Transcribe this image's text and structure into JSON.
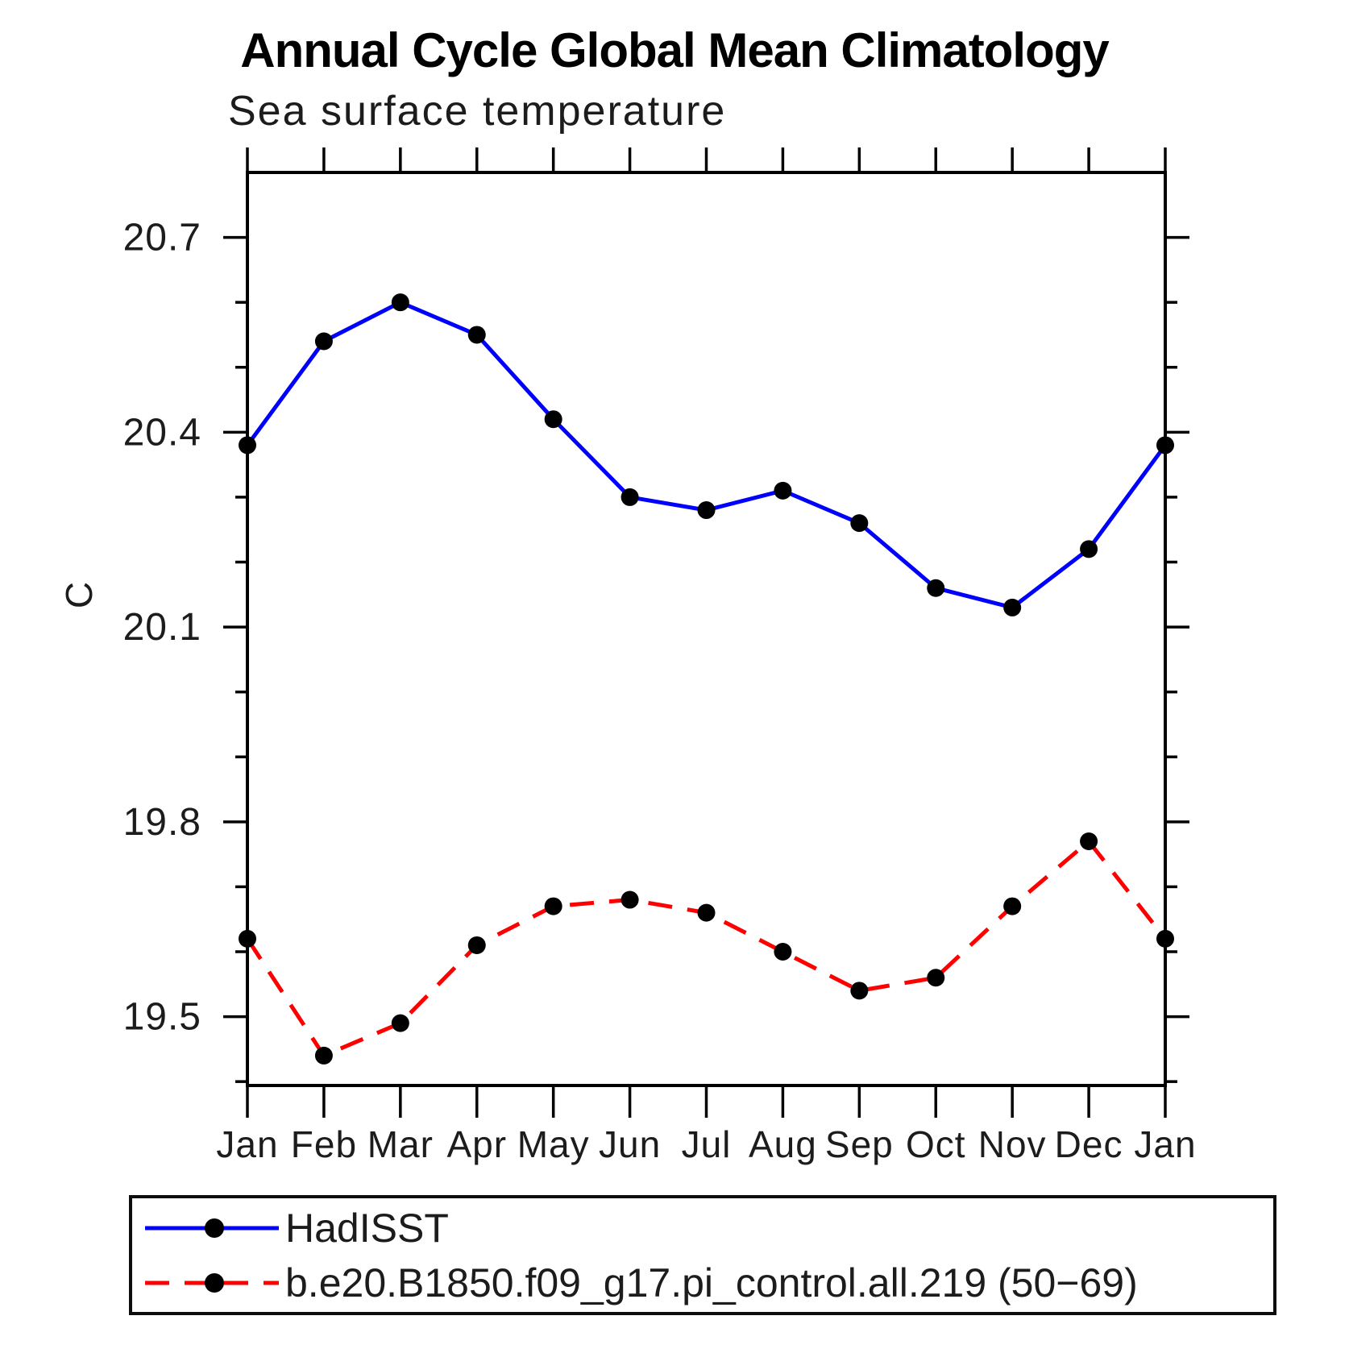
{
  "title": "Annual Cycle Global Mean Climatology",
  "subtitle": "Sea surface temperature",
  "y_axis_label": "C",
  "chart_data": {
    "type": "line",
    "title": "Annual Cycle Global Mean Climatology",
    "subtitle": "Sea surface temperature",
    "xlabel": "",
    "ylabel": "C",
    "x_categories": [
      "Jan",
      "Feb",
      "Mar",
      "Apr",
      "May",
      "Jun",
      "Jul",
      "Aug",
      "Sep",
      "Oct",
      "Nov",
      "Dec",
      "Jan"
    ],
    "y_major_ticks": [
      "20.7",
      "20.4",
      "20.1",
      "19.8",
      "19.5"
    ],
    "y_minor_step": 0.1,
    "y_minor_from": 19.4,
    "y_minor_to": 20.7,
    "ylim": [
      19.394,
      20.8
    ],
    "grid": false,
    "legend_position": "below-left",
    "frame_color": "#000000",
    "series": [
      {
        "name": "HadISST",
        "color": "#0000ff",
        "line_style": "solid",
        "marker": "circle",
        "marker_color": "#000000",
        "values": [
          20.38,
          20.54,
          20.6,
          20.55,
          20.42,
          20.3,
          20.28,
          20.31,
          20.26,
          20.16,
          20.13,
          20.22,
          20.38
        ]
      },
      {
        "name": "b.e20.B1850.f09_g17.pi_control.all.219 (50−69)",
        "color": "#ff0000",
        "line_style": "dashed",
        "marker": "circle",
        "marker_color": "#000000",
        "values": [
          19.62,
          19.44,
          19.49,
          19.61,
          19.67,
          19.68,
          19.66,
          19.6,
          19.54,
          19.56,
          19.67,
          19.77,
          19.62
        ]
      }
    ]
  },
  "legend": {
    "entries": [
      {
        "label": "HadISST"
      },
      {
        "label": "b.e20.B1850.f09_g17.pi_control.all.219 (50−69)"
      }
    ]
  }
}
